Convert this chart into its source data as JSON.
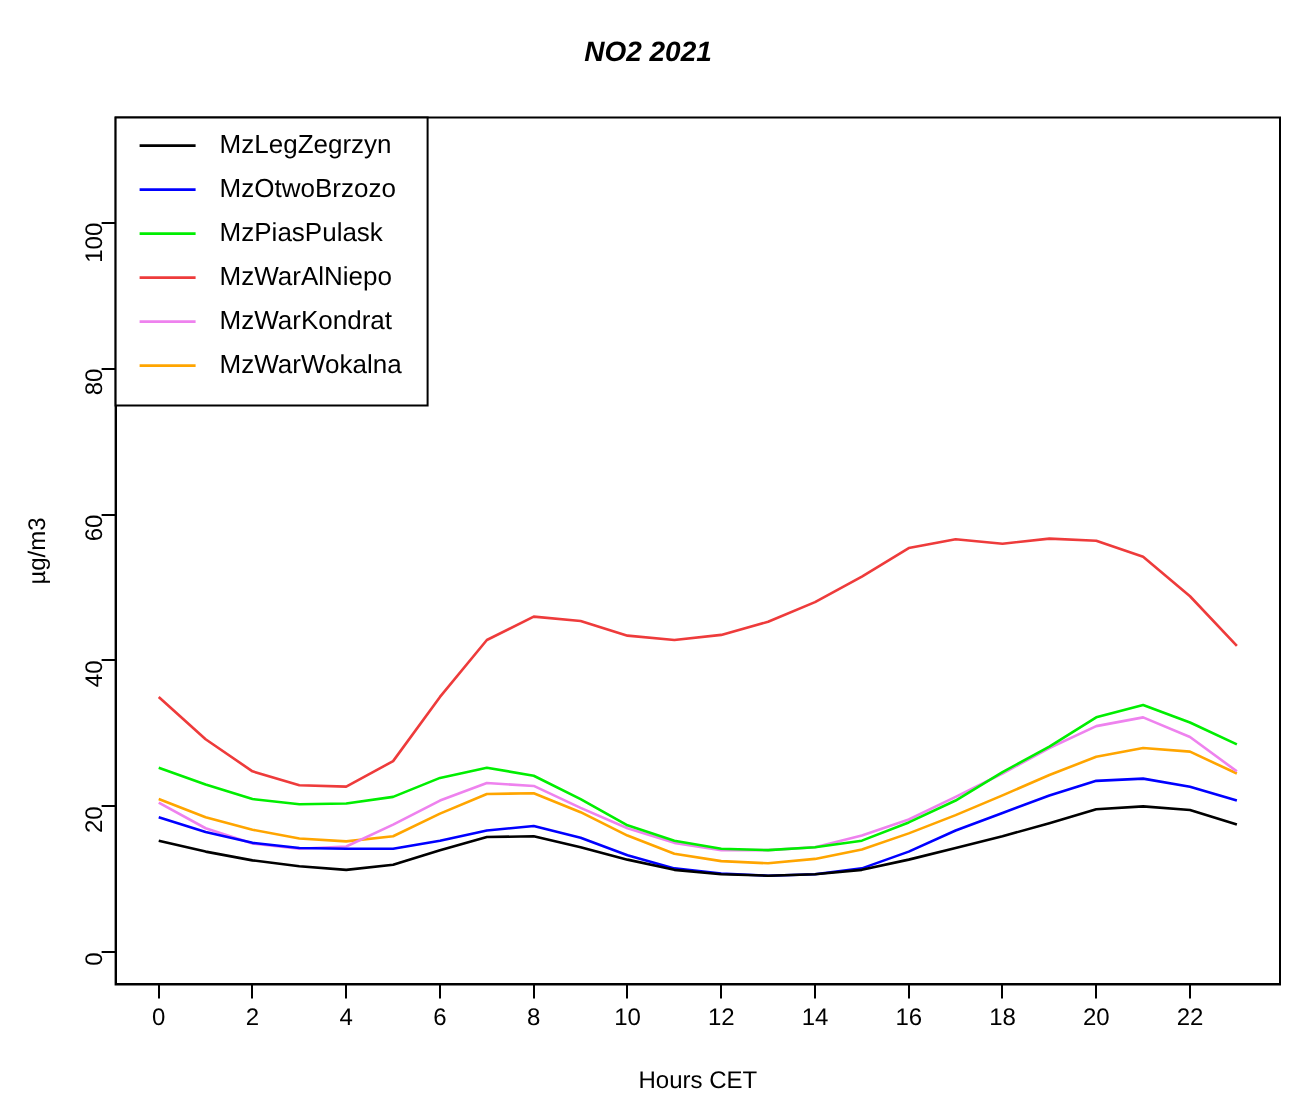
{
  "chart_data": {
    "type": "line",
    "title": "NO2 2021",
    "xlabel": "Hours CET",
    "ylabel": "µg/m3",
    "x": [
      0,
      1,
      2,
      3,
      4,
      5,
      6,
      7,
      8,
      9,
      10,
      11,
      12,
      13,
      14,
      15,
      16,
      17,
      18,
      19,
      20,
      21,
      22,
      23
    ],
    "xlim": [
      -0.92,
      23.92
    ],
    "xticks": [
      0,
      2,
      4,
      6,
      8,
      10,
      12,
      14,
      16,
      18,
      20,
      22
    ],
    "ylim": [
      -4.4,
      114.4
    ],
    "yticks": [
      0,
      20,
      40,
      60,
      80,
      100
    ],
    "grid": false,
    "legend": "top left",
    "marker": "none",
    "line_style": "solid",
    "series": [
      {
        "name": "MzLegZegrzyn",
        "color": "#000000",
        "values": [
          15.3,
          13.8,
          12.6,
          11.8,
          11.3,
          12,
          14,
          15.8,
          15.9,
          14.4,
          12.7,
          11.3,
          10.7,
          10.5,
          10.7,
          11.3,
          12.7,
          14.3,
          15.9,
          17.7,
          19.6,
          20,
          19.5,
          17.5
        ]
      },
      {
        "name": "MzOtwoBrzozo",
        "color": "#0000ff",
        "values": [
          18.5,
          16.5,
          15,
          14.3,
          14.2,
          14.2,
          15.3,
          16.7,
          17.3,
          15.7,
          13.3,
          11.5,
          10.8,
          10.5,
          10.7,
          11.5,
          13.8,
          16.7,
          19.1,
          21.5,
          23.5,
          23.8,
          22.7,
          20.8
        ]
      },
      {
        "name": "MzPiasPulask",
        "color": "#00ee00",
        "values": [
          25.3,
          23,
          21,
          20.3,
          20.4,
          21.3,
          23.9,
          25.3,
          24.2,
          21,
          17.4,
          15.3,
          14.2,
          14,
          14.4,
          15.3,
          17.8,
          20.8,
          24.7,
          28.2,
          32.2,
          33.9,
          31.5,
          28.5
        ]
      },
      {
        "name": "MzWarAlNiepo",
        "color": "#ee3b3b",
        "values": [
          35,
          29.2,
          24.8,
          22.9,
          22.7,
          26.2,
          35,
          42.8,
          46,
          45.4,
          43.4,
          42.8,
          43.5,
          45.3,
          48,
          51.5,
          55.4,
          56.6,
          56,
          56.7,
          56.4,
          54.2,
          48.8,
          42
        ]
      },
      {
        "name": "MzWarKondrat",
        "color": "#ee82ee",
        "values": [
          20.5,
          17,
          14.9,
          14.2,
          14.5,
          17.5,
          20.8,
          23.2,
          22.8,
          19.8,
          17,
          15,
          14,
          14,
          14.4,
          16,
          18.2,
          21.3,
          24.5,
          28,
          31,
          32.2,
          29.5,
          24.8
        ]
      },
      {
        "name": "MzWarWokalna",
        "color": "#ffa500",
        "values": [
          21,
          18.5,
          16.8,
          15.6,
          15.2,
          15.9,
          19,
          21.7,
          21.8,
          19.2,
          16,
          13.5,
          12.5,
          12.2,
          12.8,
          14.1,
          16.3,
          18.8,
          21.5,
          24.3,
          26.8,
          28,
          27.5,
          24.5
        ]
      }
    ]
  }
}
